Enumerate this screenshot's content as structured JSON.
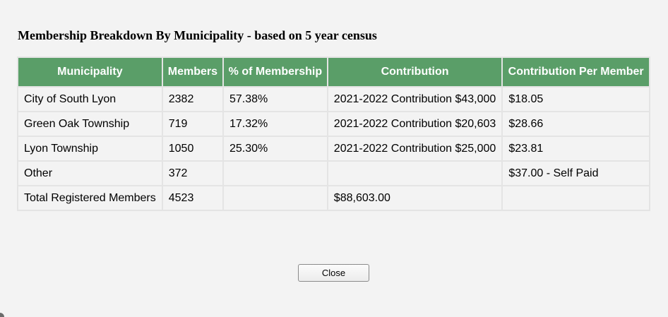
{
  "dialog": {
    "title": "Membership Breakdown By Municipality - based on 5 year census",
    "close_label": "Close"
  },
  "table": {
    "headers": [
      "Municipality",
      "Members",
      "% of Membership",
      "Contribution",
      "Contribution Per Member"
    ],
    "rows": [
      [
        "City of South Lyon",
        "2382",
        "57.38%",
        "2021-2022 Contribution $43,000",
        "$18.05"
      ],
      [
        "Green Oak Township",
        "719",
        "17.32%",
        "2021-2022 Contribution $20,603",
        "$28.66"
      ],
      [
        "Lyon Township",
        "1050",
        "25.30%",
        "2021-2022 Contribution $25,000",
        "$23.81"
      ],
      [
        "Other",
        "372",
        "",
        "",
        "$37.00 - Self Paid"
      ],
      [
        "Total Registered Members",
        "4523",
        "",
        "$88,603.00",
        ""
      ]
    ]
  },
  "colors": {
    "header_bg": "#5a9e68",
    "header_text": "#ffffff",
    "dialog_bg": "#f3f3f3",
    "grid_line": "#e4e4e4"
  }
}
